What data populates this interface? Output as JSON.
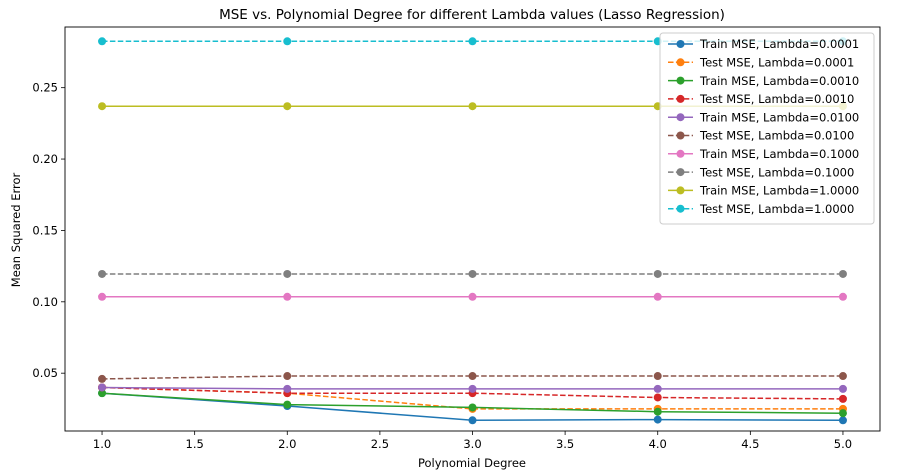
{
  "chart_data": {
    "type": "line",
    "title": "MSE vs. Polynomial Degree for different Lambda values (Lasso Regression)",
    "xlabel": "Polynomial Degree",
    "ylabel": "Mean Squared Error",
    "xlim": [
      0.8,
      5.2
    ],
    "ylim": [
      0.0095,
      0.2925
    ],
    "xticks": [
      1.0,
      1.5,
      2.0,
      2.5,
      3.0,
      3.5,
      4.0,
      4.5,
      5.0
    ],
    "xtick_labels": [
      "1.0",
      "1.5",
      "2.0",
      "2.5",
      "3.0",
      "3.5",
      "4.0",
      "4.5",
      "5.0"
    ],
    "yticks": [
      0.05,
      0.1,
      0.15,
      0.2,
      0.25
    ],
    "ytick_labels": [
      "0.05",
      "0.10",
      "0.15",
      "0.20",
      "0.25"
    ],
    "grid": false,
    "legend_position": "top-right",
    "x": [
      1.0,
      2.0,
      3.0,
      4.0,
      5.0
    ],
    "series": [
      {
        "name": "Train MSE, Lambda=0.0001",
        "color": "#1f77b4",
        "dashed": false,
        "values": [
          0.036,
          0.027,
          0.017,
          0.0175,
          0.017
        ]
      },
      {
        "name": "Test MSE, Lambda=0.0001",
        "color": "#ff7f0e",
        "dashed": true,
        "values": [
          0.04,
          0.036,
          0.025,
          0.025,
          0.025
        ]
      },
      {
        "name": "Train MSE, Lambda=0.0010",
        "color": "#2ca02c",
        "dashed": false,
        "values": [
          0.036,
          0.028,
          0.026,
          0.023,
          0.022
        ]
      },
      {
        "name": "Test MSE, Lambda=0.0010",
        "color": "#d62728",
        "dashed": true,
        "values": [
          0.04,
          0.036,
          0.036,
          0.033,
          0.032
        ]
      },
      {
        "name": "Train MSE, Lambda=0.0100",
        "color": "#9467bd",
        "dashed": false,
        "values": [
          0.04,
          0.039,
          0.039,
          0.039,
          0.039
        ]
      },
      {
        "name": "Test MSE, Lambda=0.0100",
        "color": "#8c564b",
        "dashed": true,
        "values": [
          0.046,
          0.048,
          0.048,
          0.048,
          0.048
        ]
      },
      {
        "name": "Train MSE, Lambda=0.1000",
        "color": "#e377c2",
        "dashed": false,
        "values": [
          0.1035,
          0.1035,
          0.1035,
          0.1035,
          0.1035
        ]
      },
      {
        "name": "Test MSE, Lambda=0.1000",
        "color": "#7f7f7f",
        "dashed": true,
        "values": [
          0.1195,
          0.1195,
          0.1195,
          0.1195,
          0.1195
        ]
      },
      {
        "name": "Train MSE, Lambda=1.0000",
        "color": "#bcbd22",
        "dashed": false,
        "values": [
          0.237,
          0.237,
          0.237,
          0.237,
          0.237
        ]
      },
      {
        "name": "Test MSE, Lambda=1.0000",
        "color": "#17becf",
        "dashed": true,
        "values": [
          0.2825,
          0.2825,
          0.2825,
          0.2825,
          0.2825
        ]
      }
    ]
  }
}
